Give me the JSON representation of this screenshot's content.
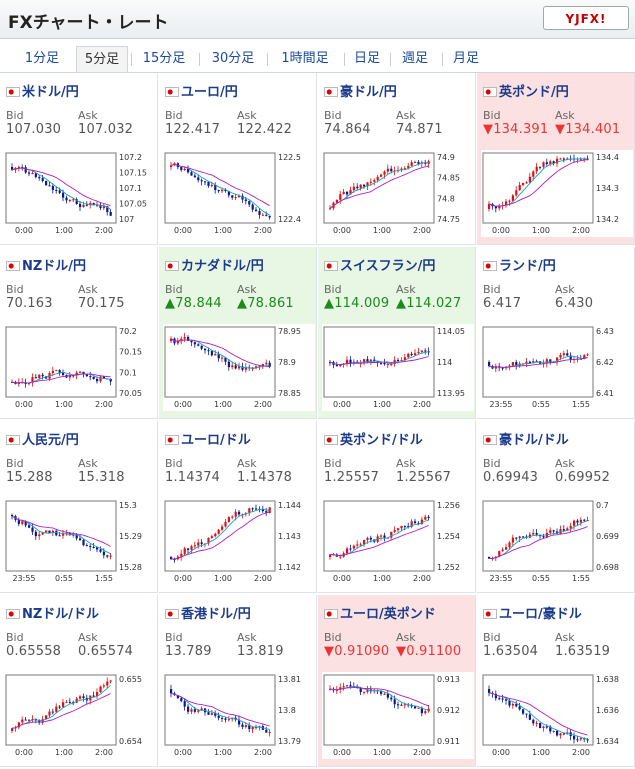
{
  "title": "FXチャート・レート",
  "logo": "YJFX!",
  "tabs": [
    "1分足",
    "5分足",
    "15分足",
    "30分足",
    "1時間足",
    "日足",
    "週足",
    "月足"
  ],
  "active_tab": 1,
  "bid_label": "Bid",
  "ask_label": "Ask",
  "cells": [
    {
      "pair": "米ドル/円",
      "bid": "107.030",
      "ask": "107.032",
      "state": "",
      "xt": [
        "0:00",
        "1:00",
        "2:00"
      ],
      "yt": [
        "107.2",
        "107.15",
        "107.1",
        "107.05",
        "107"
      ],
      "trend": "down"
    },
    {
      "pair": "ユーロ/円",
      "bid": "122.417",
      "ask": "122.422",
      "state": "",
      "xt": [
        "0:00",
        "1:00",
        "2:00"
      ],
      "yt": [
        "122.5",
        "122.4"
      ],
      "trend": "down"
    },
    {
      "pair": "豪ドル/円",
      "bid": "74.864",
      "ask": "74.871",
      "state": "",
      "xt": [
        "0:00",
        "1:00",
        "2:00"
      ],
      "yt": [
        "74.9",
        "74.85",
        "74.8",
        "74.75"
      ],
      "trend": "up"
    },
    {
      "pair": "英ポンド/円",
      "bid": "▼134.391",
      "ask": "▼134.401",
      "state": "down",
      "xt": [
        "0:00",
        "1:00",
        "2:00"
      ],
      "yt": [
        "134.4",
        "134.3",
        "134.2"
      ],
      "trend": "up"
    },
    {
      "pair": "NZドル/円",
      "bid": "70.163",
      "ask": "70.175",
      "state": "",
      "xt": [
        "0:00",
        "1:00",
        "2:00"
      ],
      "yt": [
        "70.2",
        "70.15",
        "70.1",
        "70.05"
      ],
      "trend": "up"
    },
    {
      "pair": "カナダドル/円",
      "bid": "▲78.844",
      "ask": "▲78.861",
      "state": "up",
      "xt": [
        "0:00",
        "1:00",
        "2:00"
      ],
      "yt": [
        "78.95",
        "78.9",
        "78.85"
      ],
      "trend": "down"
    },
    {
      "pair": "スイスフラン/円",
      "bid": "▲114.009",
      "ask": "▲114.027",
      "state": "up",
      "xt": [
        "0:00",
        "1:00",
        "2:00"
      ],
      "yt": [
        "114.05",
        "114",
        "113.95"
      ],
      "trend": "flat"
    },
    {
      "pair": "ランド/円",
      "bid": "6.417",
      "ask": "6.430",
      "state": "",
      "xt": [
        "23:55",
        "0:55",
        "1:55"
      ],
      "yt": [
        "6.43",
        "6.42",
        "6.41"
      ],
      "trend": "flat"
    },
    {
      "pair": "人民元/円",
      "bid": "15.288",
      "ask": "15.318",
      "state": "",
      "xt": [
        "23:55",
        "0:55",
        "1:55"
      ],
      "yt": [
        "15.3",
        "15.29",
        "15.28"
      ],
      "trend": "down"
    },
    {
      "pair": "ユーロ/ドル",
      "bid": "1.14374",
      "ask": "1.14378",
      "state": "",
      "xt": [
        "0:00",
        "1:00",
        "2:00"
      ],
      "yt": [
        "1.144",
        "1.143",
        "1.142"
      ],
      "trend": "up"
    },
    {
      "pair": "英ポンド/ドル",
      "bid": "1.25557",
      "ask": "1.25567",
      "state": "",
      "xt": [
        "0:00",
        "1:00",
        "2:00"
      ],
      "yt": [
        "1.256",
        "1.254",
        "1.252"
      ],
      "trend": "up"
    },
    {
      "pair": "豪ドル/ドル",
      "bid": "0.69943",
      "ask": "0.69952",
      "state": "",
      "xt": [
        "23:55",
        "0:55",
        "1:55"
      ],
      "yt": [
        "0.7",
        "0.699",
        "0.698"
      ],
      "trend": "up"
    },
    {
      "pair": "NZドル/ドル",
      "bid": "0.65558",
      "ask": "0.65574",
      "state": "",
      "xt": [
        "0:00",
        "1:00",
        "2:00"
      ],
      "yt": [
        "0.655",
        "0.654"
      ],
      "trend": "up"
    },
    {
      "pair": "香港ドル/円",
      "bid": "13.789",
      "ask": "13.819",
      "state": "",
      "xt": [
        "0:00",
        "1:00",
        "2:00"
      ],
      "yt": [
        "13.81",
        "13.8",
        "13.79"
      ],
      "trend": "down"
    },
    {
      "pair": "ユーロ/英ポンド",
      "bid": "▼0.91090",
      "ask": "▼0.91100",
      "state": "down",
      "xt": [
        "0:00",
        "1:00",
        "2:00"
      ],
      "yt": [
        "0.913",
        "0.912",
        "0.911"
      ],
      "trend": "down"
    },
    {
      "pair": "ユーロ/豪ドル",
      "bid": "1.63504",
      "ask": "1.63519",
      "state": "",
      "xt": [
        "0:00",
        "1:00",
        "2:00"
      ],
      "yt": [
        "1.638",
        "1.636",
        "1.634"
      ],
      "trend": "down"
    }
  ]
}
